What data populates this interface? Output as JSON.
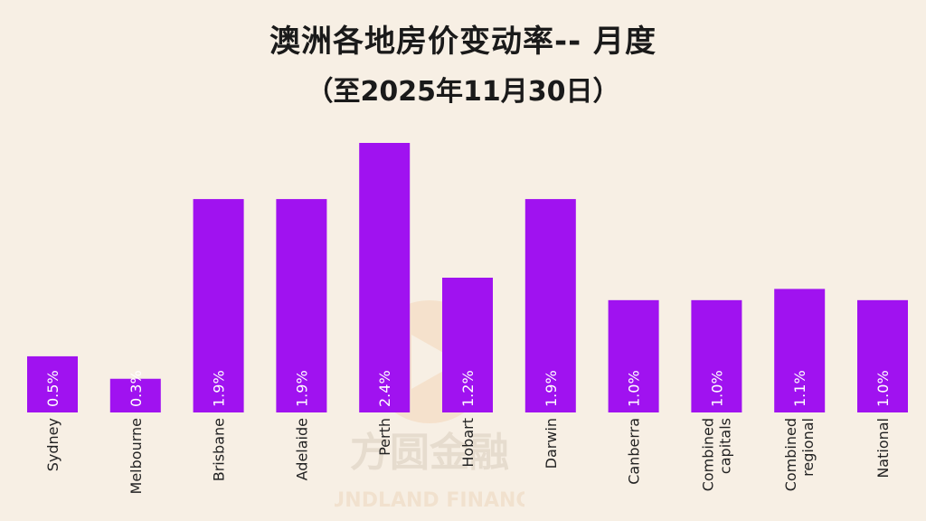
{
  "chart_data": {
    "type": "bar",
    "title": "澳洲各地房价变动率-- 月度",
    "subtitle": "（至2025年11月30日）",
    "categories": [
      "Sydney",
      "Melbourne",
      "Brisbane",
      "Adelaide",
      "Perth",
      "Hobart",
      "Darwin",
      "Canberra",
      "Combined capitals",
      "Combined regional",
      "National"
    ],
    "values": [
      0.5,
      0.3,
      1.9,
      1.9,
      2.4,
      1.2,
      1.9,
      1.0,
      1.0,
      1.1,
      1.0
    ],
    "data_labels": [
      "0.5%",
      "0.3%",
      "1.9%",
      "1.9%",
      "2.4%",
      "1.2%",
      "1.9%",
      "1.0%",
      "1.0%",
      "1.1%",
      "1.0%"
    ],
    "ylim": [
      0,
      2.4
    ],
    "grid": false,
    "bar_color": "#a012f0"
  },
  "watermark": {
    "brand_cn": "方圆金融",
    "brand_en": "FUNDLAND FINANCE"
  }
}
